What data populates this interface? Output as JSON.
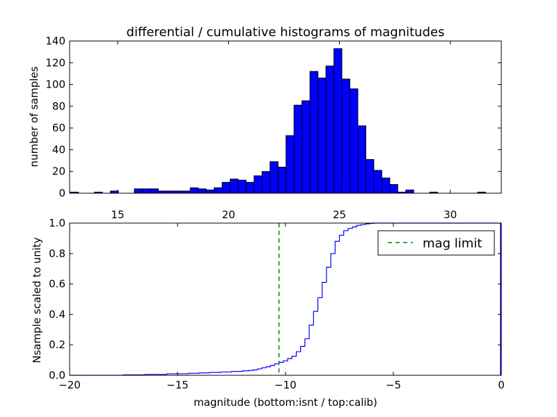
{
  "colors": {
    "bar_fill": "#0000ff",
    "bar_edge": "#000000",
    "cdf_line": "#0000ff",
    "mag_limit_line": "#008000",
    "axes_edge": "#000000",
    "background": "#ffffff"
  },
  "chart_data": [
    {
      "id": "top",
      "type": "bar",
      "title": "differential / cumulative histograms of magnitudes",
      "xlabel": "",
      "ylabel": "number of samples",
      "xlim": [
        12.83,
        32.3
      ],
      "ylim": [
        0,
        140
      ],
      "xticks": [
        15,
        20,
        25,
        30
      ],
      "yticks": [
        0,
        20,
        40,
        60,
        80,
        100,
        120,
        140
      ],
      "bin_width": 0.36,
      "bins": [
        {
          "x": 12.87,
          "value": 1
        },
        {
          "x": 13.95,
          "value": 1
        },
        {
          "x": 14.67,
          "value": 2
        },
        {
          "x": 15.75,
          "value": 4
        },
        {
          "x": 16.11,
          "value": 4
        },
        {
          "x": 16.47,
          "value": 4
        },
        {
          "x": 16.83,
          "value": 2
        },
        {
          "x": 17.19,
          "value": 2
        },
        {
          "x": 17.55,
          "value": 2
        },
        {
          "x": 17.91,
          "value": 2
        },
        {
          "x": 18.27,
          "value": 5
        },
        {
          "x": 18.63,
          "value": 4
        },
        {
          "x": 18.99,
          "value": 3
        },
        {
          "x": 19.35,
          "value": 5
        },
        {
          "x": 19.71,
          "value": 10
        },
        {
          "x": 20.07,
          "value": 13
        },
        {
          "x": 20.43,
          "value": 12
        },
        {
          "x": 20.79,
          "value": 10
        },
        {
          "x": 21.15,
          "value": 16
        },
        {
          "x": 21.51,
          "value": 20
        },
        {
          "x": 21.87,
          "value": 29
        },
        {
          "x": 22.23,
          "value": 24
        },
        {
          "x": 22.59,
          "value": 53
        },
        {
          "x": 22.95,
          "value": 81
        },
        {
          "x": 23.31,
          "value": 85
        },
        {
          "x": 23.67,
          "value": 112
        },
        {
          "x": 24.03,
          "value": 106
        },
        {
          "x": 24.39,
          "value": 117
        },
        {
          "x": 24.75,
          "value": 133
        },
        {
          "x": 25.11,
          "value": 105
        },
        {
          "x": 25.47,
          "value": 96
        },
        {
          "x": 25.83,
          "value": 62
        },
        {
          "x": 26.19,
          "value": 31
        },
        {
          "x": 26.55,
          "value": 21
        },
        {
          "x": 26.91,
          "value": 14
        },
        {
          "x": 27.27,
          "value": 8
        },
        {
          "x": 27.63,
          "value": 1
        },
        {
          "x": 27.99,
          "value": 3
        },
        {
          "x": 29.07,
          "value": 1
        },
        {
          "x": 31.23,
          "value": 1
        }
      ]
    },
    {
      "id": "bottom",
      "type": "line",
      "title": "",
      "xlabel": "magnitude (bottom:isnt / top:calib)",
      "ylabel": "Nsample scaled to unity",
      "xlim": [
        -20,
        0
      ],
      "ylim": [
        0,
        1
      ],
      "xticks": [
        -20,
        -15,
        -10,
        -5,
        0
      ],
      "xtick_labels": [
        "−20",
        "−15",
        "−10",
        "−5",
        "0"
      ],
      "yticks": [
        0,
        0.2,
        0.4,
        0.6,
        0.8,
        1.0
      ],
      "ytick_labels": [
        "0.0",
        "0.2",
        "0.4",
        "0.6",
        "0.8",
        "1.0"
      ],
      "legend": {
        "position": "top-right",
        "entries": [
          "mag limit"
        ]
      },
      "series": [
        {
          "style": "step",
          "x": [
            -20,
            -17.5,
            -16.5,
            -15.5,
            -14.5,
            -14,
            -13.5,
            -13,
            -12.5,
            -12,
            -11.7,
            -11.5,
            -11.3,
            -11.1,
            -10.9,
            -10.7,
            -10.5,
            -10.3,
            -10.1,
            -9.9,
            -9.7,
            -9.5,
            -9.3,
            -9.1,
            -8.9,
            -8.7,
            -8.5,
            -8.3,
            -8.1,
            -7.9,
            -7.7,
            -7.5,
            -7.3,
            -7.1,
            -6.9,
            -6.7,
            -6.5,
            -6.3,
            -6.1,
            -5.9,
            -5.7
          ],
          "values": [
            0.0,
            0.003,
            0.006,
            0.01,
            0.013,
            0.016,
            0.019,
            0.022,
            0.025,
            0.029,
            0.032,
            0.036,
            0.042,
            0.05,
            0.056,
            0.065,
            0.075,
            0.085,
            0.095,
            0.11,
            0.125,
            0.155,
            0.19,
            0.24,
            0.33,
            0.42,
            0.51,
            0.61,
            0.71,
            0.8,
            0.88,
            0.92,
            0.95,
            0.965,
            0.975,
            0.985,
            0.99,
            0.995,
            0.998,
            1.0,
            1.0
          ]
        },
        {
          "name": "mag limit",
          "style": "vline-dashed",
          "x": -10.3
        }
      ]
    }
  ]
}
